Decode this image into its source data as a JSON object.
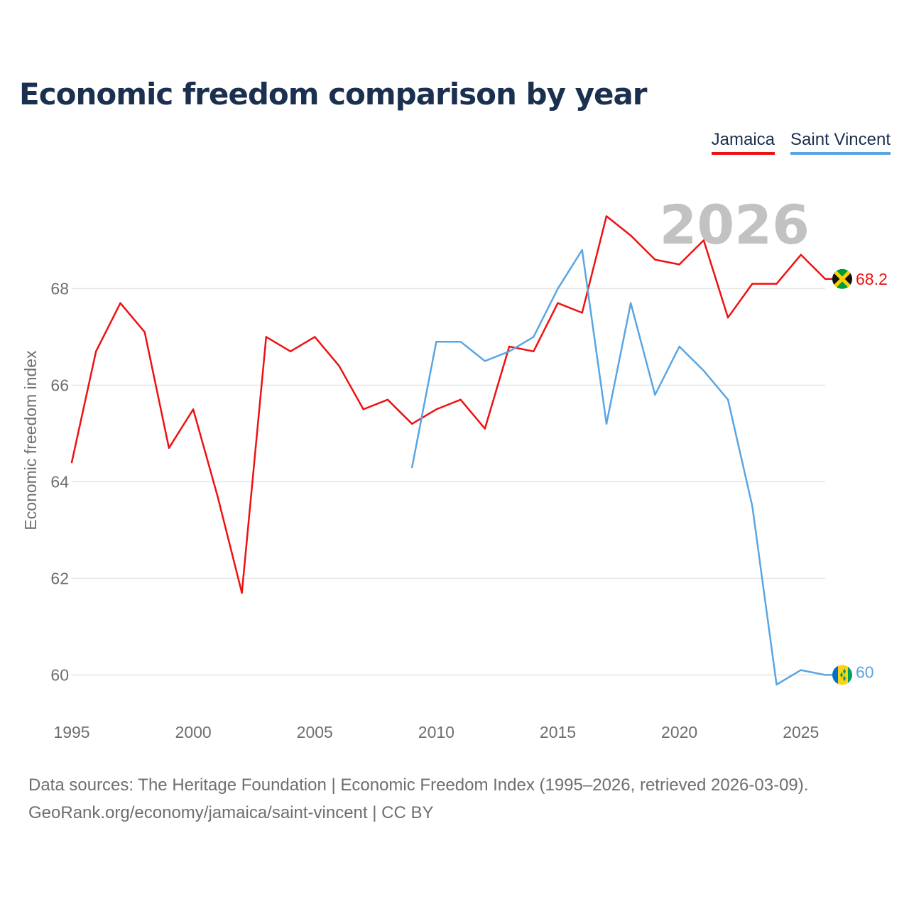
{
  "chart_data": {
    "type": "line",
    "title": "Economic freedom comparison by year",
    "ylabel": "Economic freedom index",
    "xlabel": "",
    "xlim": [
      1995,
      2026
    ],
    "ylim": [
      59.05,
      70.3
    ],
    "x_ticks": [
      "1995",
      "2000",
      "2005",
      "2010",
      "2015",
      "2020",
      "2025"
    ],
    "y_ticks": [
      "60",
      "62",
      "64",
      "66",
      "68"
    ],
    "grid": true,
    "legend_position": "top-right",
    "year_watermark": "2026",
    "series": [
      {
        "name": "Jamaica",
        "color": "#ee1111",
        "end_label": "68.2",
        "flag_icon": "jamaica-flag-icon",
        "points": [
          [
            1995,
            64.4
          ],
          [
            1996,
            66.7
          ],
          [
            1997,
            67.7
          ],
          [
            1998,
            67.1
          ],
          [
            1999,
            64.7
          ],
          [
            2000,
            65.5
          ],
          [
            2001,
            63.7
          ],
          [
            2002,
            61.7
          ],
          [
            2003,
            67.0
          ],
          [
            2004,
            66.7
          ],
          [
            2005,
            67.0
          ],
          [
            2006,
            66.4
          ],
          [
            2007,
            65.5
          ],
          [
            2008,
            65.7
          ],
          [
            2009,
            65.2
          ],
          [
            2010,
            65.5
          ],
          [
            2011,
            65.7
          ],
          [
            2012,
            65.1
          ],
          [
            2013,
            66.8
          ],
          [
            2014,
            66.7
          ],
          [
            2015,
            67.7
          ],
          [
            2016,
            67.5
          ],
          [
            2017,
            69.5
          ],
          [
            2018,
            69.1
          ],
          [
            2019,
            68.6
          ],
          [
            2020,
            68.5
          ],
          [
            2021,
            69.0
          ],
          [
            2022,
            67.4
          ],
          [
            2023,
            68.1
          ],
          [
            2024,
            68.1
          ],
          [
            2025,
            68.7
          ],
          [
            2026,
            68.2
          ]
        ]
      },
      {
        "name": "Saint Vincent",
        "color": "#5aa5e3",
        "end_label": "60",
        "flag_icon": "saint-vincent-flag-icon",
        "points": [
          [
            2009,
            64.3
          ],
          [
            2010,
            66.9
          ],
          [
            2011,
            66.9
          ],
          [
            2012,
            66.5
          ],
          [
            2013,
            66.7
          ],
          [
            2014,
            67.0
          ],
          [
            2015,
            68.0
          ],
          [
            2016,
            68.8
          ],
          [
            2017,
            65.2
          ],
          [
            2018,
            67.7
          ],
          [
            2019,
            65.8
          ],
          [
            2020,
            66.8
          ],
          [
            2021,
            66.3
          ],
          [
            2022,
            65.7
          ],
          [
            2023,
            63.5
          ],
          [
            2024,
            59.8
          ],
          [
            2025,
            60.1
          ],
          [
            2026,
            60.0
          ]
        ]
      }
    ]
  },
  "footer": {
    "line1": "Data sources: The Heritage Foundation | Economic Freedom Index (1995–2026, retrieved 2026-03-09).",
    "line2": "GeoRank.org/economy/jamaica/saint-vincent | CC BY"
  }
}
